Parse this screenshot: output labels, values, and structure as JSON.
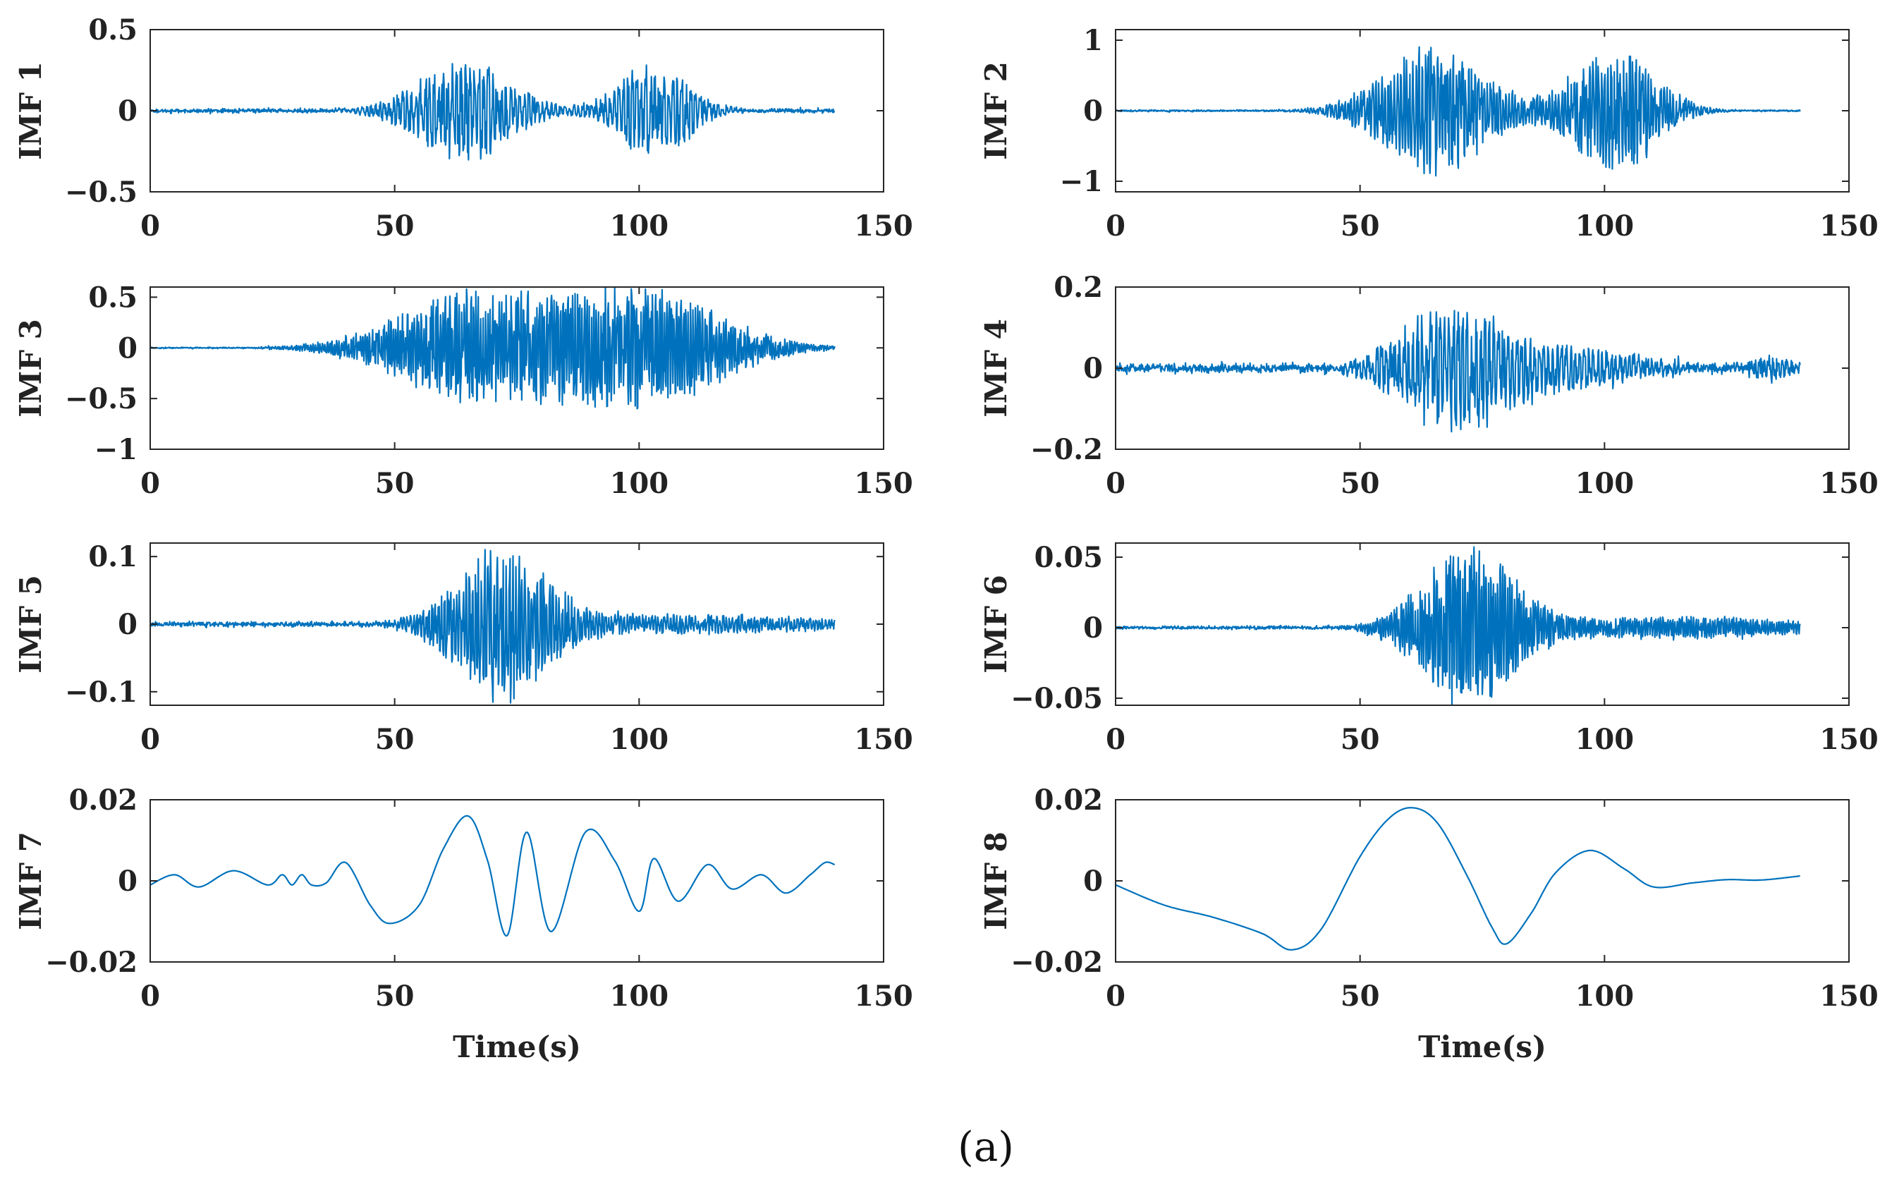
{
  "chart_data": [
    {
      "type": "line",
      "title": "",
      "ylabel": "IMF 1",
      "xlabel": "",
      "xlim": [
        0,
        150
      ],
      "ylim": [
        -0.5,
        0.5
      ],
      "xticks": [
        "0",
        "50",
        "100",
        "150"
      ],
      "yticks": [
        "0.5",
        "0",
        "−0.5"
      ],
      "ytick_values": [
        0.5,
        0,
        -0.5
      ],
      "series": [
        {
          "name": "IMF 1",
          "color": "#0072BD",
          "signal_length_s": 140,
          "noise_level": 0.01,
          "bursts": [
            {
              "center": 64,
              "width": 9,
              "amplitude": 0.34
            },
            {
              "center": 103,
              "width": 7,
              "amplitude": 0.3
            }
          ]
        }
      ]
    },
    {
      "type": "line",
      "title": "",
      "ylabel": "IMF 2",
      "xlabel": "",
      "xlim": [
        0,
        150
      ],
      "ylim": [
        -1.15,
        1.15
      ],
      "xticks": [
        "0",
        "50",
        "100",
        "150"
      ],
      "yticks": [
        "1",
        "0",
        "−1"
      ],
      "ytick_values": [
        1,
        0,
        -1
      ],
      "series": [
        {
          "name": "IMF 2",
          "color": "#0072BD",
          "signal_length_s": 140,
          "noise_level": 0.01,
          "bursts": [
            {
              "center": 65,
              "width": 10,
              "amplitude": 0.95
            },
            {
              "center": 102,
              "width": 8,
              "amplitude": 0.95
            }
          ]
        }
      ]
    },
    {
      "type": "line",
      "title": "",
      "ylabel": "IMF 3",
      "xlabel": "",
      "xlim": [
        0,
        150
      ],
      "ylim": [
        -1,
        0.6
      ],
      "xticks": [
        "0",
        "50",
        "100",
        "150"
      ],
      "yticks": [
        "0.5",
        "0",
        "−0.5",
        "−1"
      ],
      "ytick_values": [
        0.5,
        0,
        -0.5,
        -1
      ],
      "series": [
        {
          "name": "IMF 3",
          "color": "#0072BD",
          "signal_length_s": 140,
          "noise_level": 0.005,
          "bursts": [
            {
              "center": 66,
              "width": 15,
              "amplitude": 0.55
            },
            {
              "center": 101,
              "width": 15,
              "amplitude": 0.6
            }
          ]
        }
      ]
    },
    {
      "type": "line",
      "title": "",
      "ylabel": "IMF 4",
      "xlabel": "",
      "xlim": [
        0,
        150
      ],
      "ylim": [
        -0.2,
        0.2
      ],
      "xticks": [
        "0",
        "50",
        "100",
        "150"
      ],
      "yticks": [
        "0.2",
        "0",
        "−0.2"
      ],
      "ytick_values": [
        0.2,
        0,
        -0.2
      ],
      "series": [
        {
          "name": "IMF 4",
          "color": "#0072BD",
          "signal_length_s": 140,
          "noise_level": 0.01,
          "bursts": [
            {
              "center": 69,
              "width": 10,
              "amplitude": 0.16
            },
            {
              "center": 95,
              "width": 12,
              "amplitude": 0.05
            },
            {
              "center": 134,
              "width": 4,
              "amplitude": 0.03
            }
          ]
        }
      ]
    },
    {
      "type": "line",
      "title": "",
      "ylabel": "IMF 5",
      "xlabel": "",
      "xlim": [
        0,
        150
      ],
      "ylim": [
        -0.12,
        0.12
      ],
      "xticks": [
        "0",
        "50",
        "100",
        "150"
      ],
      "yticks": [
        "0.1",
        "0",
        "−0.1"
      ],
      "ytick_values": [
        0.1,
        0,
        -0.1
      ],
      "series": [
        {
          "name": "IMF 5",
          "color": "#0072BD",
          "signal_length_s": 140,
          "noise_level": 0.003,
          "bursts": [
            {
              "center": 72,
              "width": 9,
              "amplitude": 0.115
            },
            {
              "center": 110,
              "width": 25,
              "amplitude": 0.015
            }
          ]
        }
      ]
    },
    {
      "type": "line",
      "title": "",
      "ylabel": "IMF 6",
      "xlabel": "",
      "xlim": [
        0,
        150
      ],
      "ylim": [
        -0.055,
        0.06
      ],
      "xticks": [
        "0",
        "50",
        "100",
        "150"
      ],
      "yticks": [
        "0.05",
        "0",
        "−0.05"
      ],
      "ytick_values": [
        0.05,
        0,
        -0.05
      ],
      "series": [
        {
          "name": "IMF 6",
          "color": "#0072BD",
          "signal_length_s": 140,
          "noise_level": 0.001,
          "bursts": [
            {
              "center": 72,
              "width": 9,
              "amplitude": 0.058
            },
            {
              "center": 115,
              "width": 25,
              "amplitude": 0.008
            }
          ]
        }
      ]
    },
    {
      "type": "line",
      "title": "",
      "ylabel": "IMF 7",
      "xlabel": "Time(s)",
      "xlim": [
        0,
        150
      ],
      "ylim": [
        -0.02,
        0.02
      ],
      "xticks": [
        "0",
        "50",
        "100",
        "150"
      ],
      "yticks": [
        "0.02",
        "0",
        "−0.02"
      ],
      "ytick_values": [
        0.02,
        0,
        -0.02
      ],
      "series": [
        {
          "name": "IMF 7",
          "color": "#0072BD",
          "signal_length_s": 140,
          "x": [
            0,
            5,
            10,
            17,
            24,
            27,
            29,
            31,
            33,
            36,
            40,
            45,
            49,
            55,
            60,
            65,
            69,
            73,
            77,
            82,
            89,
            95,
            100,
            103,
            108,
            114,
            119,
            125,
            130,
            135,
            138,
            140
          ],
          "y": [
            -0.001,
            0.0015,
            -0.0015,
            0.0025,
            -0.001,
            0.0015,
            -0.001,
            0.0015,
            -0.001,
            -0.0005,
            0.0045,
            -0.006,
            -0.0105,
            -0.006,
            0.008,
            0.016,
            0.005,
            -0.0135,
            0.012,
            -0.0125,
            0.012,
            0.005,
            -0.0075,
            0.0055,
            -0.005,
            0.004,
            -0.002,
            0.0015,
            -0.003,
            0.0015,
            0.0045,
            0.004
          ]
        }
      ]
    },
    {
      "type": "line",
      "title": "",
      "ylabel": "IMF 8",
      "xlabel": "Time(s)",
      "xlim": [
        0,
        150
      ],
      "ylim": [
        -0.02,
        0.02
      ],
      "xticks": [
        "0",
        "50",
        "100",
        "150"
      ],
      "yticks": [
        "0.02",
        "0",
        "−0.02"
      ],
      "ytick_values": [
        0.02,
        0,
        -0.02
      ],
      "series": [
        {
          "name": "IMF 8",
          "color": "#0072BD",
          "signal_length_s": 140,
          "x": [
            0,
            10,
            20,
            30,
            36,
            42,
            50,
            56,
            61,
            66,
            72,
            77,
            80,
            85,
            90,
            97,
            104,
            110,
            118,
            125,
            132,
            140
          ],
          "y": [
            -0.001,
            -0.006,
            -0.009,
            -0.013,
            -0.017,
            -0.012,
            0.006,
            0.0155,
            0.018,
            0.014,
            0.001,
            -0.0115,
            -0.0155,
            -0.008,
            0.002,
            0.0075,
            0.003,
            -0.0015,
            -0.0005,
            0.0003,
            0.0002,
            0.0012
          ]
        }
      ]
    }
  ],
  "caption": "(a)"
}
